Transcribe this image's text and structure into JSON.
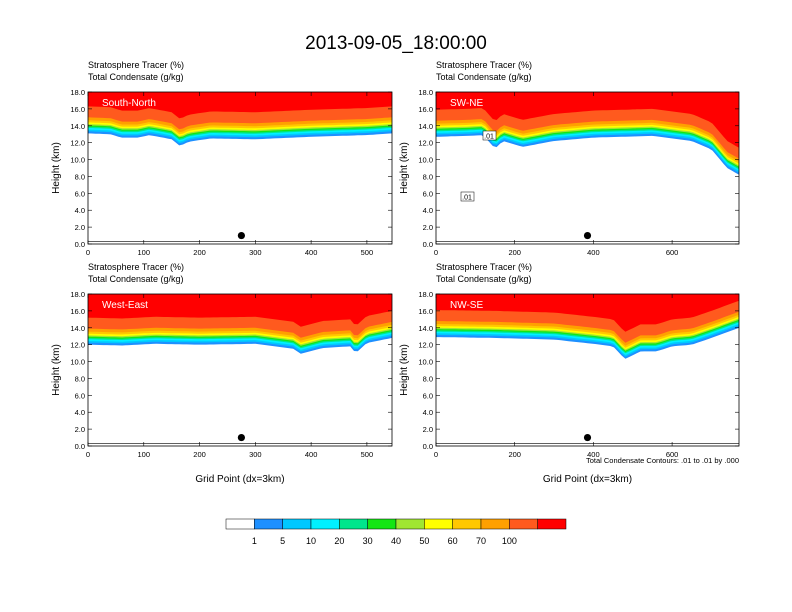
{
  "title": "2013-09-05_18:00:00",
  "panel_common": {
    "left_string_1": "Stratosphere Tracer   (%)",
    "left_string_2": "Total Condensate   (g/kg)",
    "ylabel": "Height (km)",
    "xlabel": "Grid Point (dx=3km)",
    "y_ticks": [
      "0.0",
      "2.0",
      "4.0",
      "6.0",
      "8.0",
      "10.0",
      "12.0",
      "14.0",
      "16.0",
      "18.0"
    ]
  },
  "contour_info": "Total Condensate Contours: .01 to .01 by .000",
  "colorbar": {
    "labels": [
      "1",
      "5",
      "10",
      "20",
      "30",
      "40",
      "50",
      "60",
      "70",
      "100"
    ],
    "colors": [
      "#ffffff",
      "#1e90ff",
      "#00c8ff",
      "#00f0ff",
      "#00e68c",
      "#14e614",
      "#a0e632",
      "#ffff00",
      "#ffc800",
      "#ffa000",
      "#ff5a1e",
      "#ff0000"
    ]
  },
  "chart_data": [
    {
      "type": "contour",
      "panel": "South-North",
      "xlim": [
        0,
        545
      ],
      "ylim": [
        0,
        18
      ],
      "x_ticks": [
        0,
        100,
        200,
        300,
        400,
        500
      ],
      "tracer_top_km": 18,
      "tracer_base_km": [
        [
          0,
          13.1
        ],
        [
          40,
          13.0
        ],
        [
          60,
          12.6
        ],
        [
          90,
          12.6
        ],
        [
          110,
          12.9
        ],
        [
          150,
          12.4
        ],
        [
          165,
          11.6
        ],
        [
          180,
          12.1
        ],
        [
          220,
          12.5
        ],
        [
          300,
          12.4
        ],
        [
          400,
          12.7
        ],
        [
          500,
          12.9
        ],
        [
          545,
          13.1
        ]
      ],
      "contour_labels": [],
      "marker_point": [
        275,
        1.0
      ]
    },
    {
      "type": "contour",
      "panel": "SW-NE",
      "xlim": [
        0,
        770
      ],
      "ylim": [
        0,
        18
      ],
      "x_ticks": [
        0,
        200,
        400,
        600
      ],
      "tracer_top_km": 18,
      "tracer_base_km": [
        [
          0,
          12.7
        ],
        [
          80,
          12.8
        ],
        [
          120,
          12.9
        ],
        [
          150,
          11.3
        ],
        [
          170,
          12.2
        ],
        [
          220,
          11.5
        ],
        [
          300,
          12.2
        ],
        [
          400,
          12.6
        ],
        [
          550,
          12.8
        ],
        [
          650,
          12.2
        ],
        [
          700,
          11.2
        ],
        [
          740,
          9.0
        ],
        [
          770,
          8.2
        ]
      ],
      "contour_labels": [
        ".01",
        ".01"
      ],
      "marker_point": [
        385,
        1.0
      ]
    },
    {
      "type": "contour",
      "panel": "West-East",
      "xlim": [
        0,
        545
      ],
      "ylim": [
        0,
        18
      ],
      "x_ticks": [
        0,
        100,
        200,
        300,
        400,
        500
      ],
      "tracer_top_km": 18,
      "tracer_base_km": [
        [
          0,
          12.0
        ],
        [
          60,
          11.9
        ],
        [
          120,
          12.1
        ],
        [
          200,
          12.0
        ],
        [
          300,
          12.1
        ],
        [
          370,
          11.5
        ],
        [
          380,
          10.9
        ],
        [
          420,
          11.6
        ],
        [
          470,
          11.8
        ],
        [
          480,
          11.0
        ],
        [
          500,
          12.2
        ],
        [
          545,
          12.8
        ]
      ],
      "contour_labels": [],
      "marker_point": [
        275,
        1.0
      ]
    },
    {
      "type": "contour",
      "panel": "NW-SE",
      "xlim": [
        0,
        770
      ],
      "ylim": [
        0,
        18
      ],
      "x_ticks": [
        0,
        200,
        400,
        600
      ],
      "tracer_top_km": 18,
      "tracer_base_km": [
        [
          0,
          12.9
        ],
        [
          150,
          12.8
        ],
        [
          300,
          12.6
        ],
        [
          400,
          12.1
        ],
        [
          450,
          11.8
        ],
        [
          480,
          10.3
        ],
        [
          520,
          11.2
        ],
        [
          560,
          11.2
        ],
        [
          600,
          11.8
        ],
        [
          650,
          12.0
        ],
        [
          700,
          12.8
        ],
        [
          770,
          14.0
        ]
      ],
      "contour_labels": [],
      "marker_point": [
        385,
        1.0
      ]
    }
  ]
}
